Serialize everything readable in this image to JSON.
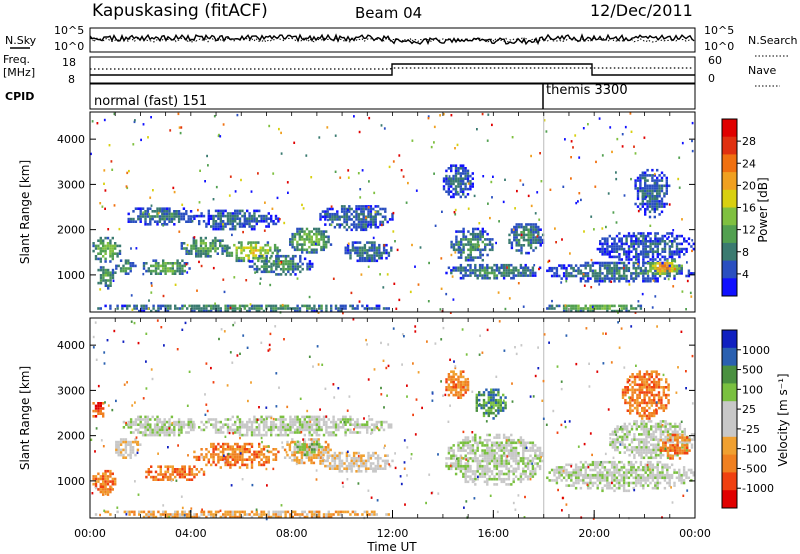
{
  "header": {
    "station": "Kapuskasing (fitACF)",
    "beam": "Beam 04",
    "date": "12/Dec/2011"
  },
  "panels": {
    "noise": {
      "left_label": "N.Sky",
      "left_ticks": [
        "10^5",
        "10^0"
      ],
      "right_label": "N.Search",
      "right_ticks": [
        "10^5",
        "10^0"
      ]
    },
    "freq": {
      "left_label_1": "Freq.",
      "left_label_2": "[MHz]",
      "left_ticks": [
        "18",
        "8"
      ],
      "right_label": "Nave",
      "right_ticks": [
        "60",
        "0"
      ]
    },
    "cpid": {
      "label": "CPID",
      "modes": [
        {
          "text": "normal (fast) 151",
          "start_hour": 0
        },
        {
          "text": "themis 3300",
          "start_hour": 18
        }
      ]
    }
  },
  "colors": {
    "power_scale": [
      "#1010ff",
      "#2a4fc0",
      "#3a7a70",
      "#52a050",
      "#7fc040",
      "#d8d010",
      "#f0a020",
      "#f07010",
      "#e03010",
      "#e00000"
    ],
    "velocity_scale": [
      "#1020c0",
      "#2a60b0",
      "#4a9040",
      "#7ac040",
      "#c8c8c8",
      "#c8c8c8",
      "#f0a030",
      "#f08020",
      "#f04010",
      "#e00000"
    ]
  },
  "chart_data": [
    {
      "type": "heatmap",
      "name": "power",
      "ylabel": "Slant Range [km]",
      "yticks": [
        "1000",
        "2000",
        "3000",
        "4000"
      ],
      "ylim": [
        180,
        4600
      ],
      "xlim": [
        0,
        24
      ],
      "colorbar_label": "Power [dB]",
      "colorbar_ticks": [
        "4",
        "8",
        "12",
        "16",
        "20",
        "24",
        "28"
      ],
      "colorbar_range": [
        0,
        32
      ],
      "regions": [
        {
          "t0": 0.0,
          "t1": 1.2,
          "r0": 1300,
          "r1": 1900,
          "level": 14
        },
        {
          "t0": 0.2,
          "t1": 1.0,
          "r0": 700,
          "r1": 1250,
          "level": 12
        },
        {
          "t0": 0.9,
          "t1": 1.8,
          "r0": 1000,
          "r1": 1400,
          "level": 10
        },
        {
          "t0": 1.2,
          "t1": 4.2,
          "r0": 2100,
          "r1": 2550,
          "level": 8
        },
        {
          "t0": 2.0,
          "t1": 4.0,
          "r0": 1000,
          "r1": 1400,
          "level": 13
        },
        {
          "t0": 3.5,
          "t1": 5.5,
          "r0": 1400,
          "r1": 1900,
          "level": 12
        },
        {
          "t0": 4.0,
          "t1": 7.5,
          "r0": 2000,
          "r1": 2500,
          "level": 7
        },
        {
          "t0": 5.2,
          "t1": 7.5,
          "r0": 1300,
          "r1": 1800,
          "level": 18
        },
        {
          "t0": 6.2,
          "t1": 8.8,
          "r0": 1000,
          "r1": 1500,
          "level": 10
        },
        {
          "t0": 7.8,
          "t1": 9.6,
          "r0": 1500,
          "r1": 2100,
          "level": 14
        },
        {
          "t0": 9.0,
          "t1": 12.0,
          "r0": 2000,
          "r1": 2600,
          "level": 7
        },
        {
          "t0": 10.0,
          "t1": 12.0,
          "r0": 1300,
          "r1": 1800,
          "level": 8
        },
        {
          "t0": 13.9,
          "t1": 15.2,
          "r0": 2700,
          "r1": 3500,
          "level": 7
        },
        {
          "t0": 14.2,
          "t1": 16.0,
          "r0": 1300,
          "r1": 2100,
          "level": 10
        },
        {
          "t0": 14.0,
          "t1": 18.0,
          "r0": 900,
          "r1": 1300,
          "level": 9
        },
        {
          "t0": 16.5,
          "t1": 18.0,
          "r0": 1500,
          "r1": 2200,
          "level": 9
        },
        {
          "t0": 18.0,
          "t1": 24.0,
          "r0": 850,
          "r1": 1350,
          "level": 8
        },
        {
          "t0": 20.0,
          "t1": 24.0,
          "r0": 1300,
          "r1": 2000,
          "level": 6
        },
        {
          "t0": 22.0,
          "t1": 23.5,
          "r0": 1000,
          "r1": 1400,
          "level": 22
        },
        {
          "t0": 21.5,
          "t1": 23.0,
          "r0": 2300,
          "r1": 3400,
          "level": 7
        },
        {
          "t0": 18.0,
          "t1": 22.0,
          "r0": 200,
          "r1": 400,
          "level": 14
        },
        {
          "t0": 0.0,
          "t1": 12.0,
          "r0": 200,
          "r1": 400,
          "level": 10
        }
      ]
    },
    {
      "type": "heatmap",
      "name": "velocity",
      "ylabel": "Slant Range [km]",
      "yticks": [
        "1000",
        "2000",
        "3000",
        "4000"
      ],
      "ylim": [
        180,
        4600
      ],
      "xlim": [
        0,
        24
      ],
      "xticks": [
        "00:00",
        "04:00",
        "08:00",
        "12:00",
        "16:00",
        "20:00",
        "00:00"
      ],
      "xlabel": "Time UT",
      "colorbar_label": "Velocity [m s⁻¹]",
      "colorbar_ticks": [
        "1000",
        "500",
        "100",
        "25",
        "-25",
        "-100",
        "-500",
        "-1000"
      ],
      "regions": [
        {
          "t0": 0.0,
          "t1": 1.0,
          "r0": 700,
          "r1": 1300,
          "level": 7
        },
        {
          "t0": 0.0,
          "t1": 0.6,
          "r0": 2400,
          "r1": 2800,
          "level": 8
        },
        {
          "t0": 0.9,
          "t1": 2.0,
          "r0": 1500,
          "r1": 2000,
          "level": 5
        },
        {
          "t0": 1.2,
          "t1": 4.2,
          "r0": 2000,
          "r1": 2500,
          "level": 4
        },
        {
          "t0": 2.0,
          "t1": 4.5,
          "r0": 1000,
          "r1": 1400,
          "level": 7
        },
        {
          "t0": 4.0,
          "t1": 7.5,
          "r0": 1300,
          "r1": 1900,
          "level": 7
        },
        {
          "t0": 7.5,
          "t1": 9.6,
          "r0": 1400,
          "r1": 2000,
          "level": 6
        },
        {
          "t0": 8.0,
          "t1": 9.2,
          "r0": 1600,
          "r1": 1950,
          "level": 3
        },
        {
          "t0": 4.0,
          "t1": 12.0,
          "r0": 2000,
          "r1": 2500,
          "level": 4
        },
        {
          "t0": 9.0,
          "t1": 12.0,
          "r0": 1200,
          "r1": 1700,
          "level": 5
        },
        {
          "t0": 14.0,
          "t1": 15.0,
          "r0": 2800,
          "r1": 3500,
          "level": 7
        },
        {
          "t0": 15.2,
          "t1": 16.5,
          "r0": 2400,
          "r1": 3100,
          "level": 2
        },
        {
          "t0": 14.0,
          "t1": 18.0,
          "r0": 900,
          "r1": 2100,
          "level": 4
        },
        {
          "t0": 18.0,
          "t1": 24.0,
          "r0": 800,
          "r1": 1500,
          "level": 4
        },
        {
          "t0": 20.5,
          "t1": 24.0,
          "r0": 1500,
          "r1": 2400,
          "level": 4
        },
        {
          "t0": 22.5,
          "t1": 23.8,
          "r0": 1500,
          "r1": 2100,
          "level": 7
        },
        {
          "t0": 21.0,
          "t1": 23.0,
          "r0": 2400,
          "r1": 3500,
          "level": 7
        },
        {
          "t0": 0.0,
          "t1": 12.0,
          "r0": 200,
          "r1": 400,
          "level": 6
        }
      ]
    }
  ]
}
